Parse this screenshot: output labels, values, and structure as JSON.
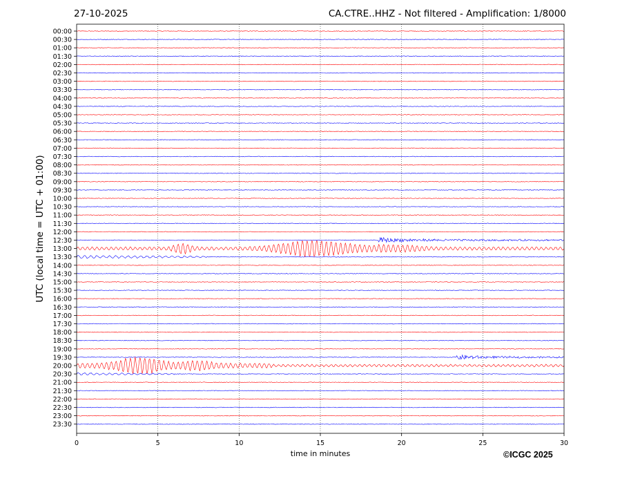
{
  "header": {
    "date": "27-10-2025",
    "title": "CA.CTRE..HHZ - Not filtered - Amplification: 1/8000"
  },
  "footer": {
    "copyright": "©ICGC 2025"
  },
  "colors": {
    "odd_trace": "#ff0000",
    "even_trace": "#0000ff",
    "grid": "#000000"
  },
  "chart_data": {
    "type": "line",
    "title": "CA.CTRE..HHZ - Not filtered - Amplification: 1/8000",
    "xlabel": "time in minutes",
    "ylabel": "UTC (local time = UTC + 01:00)",
    "xlim": [
      0,
      30
    ],
    "xticks": [
      0,
      5,
      10,
      15,
      20,
      25,
      30
    ],
    "grid": "vertical dotted",
    "trace_rows": [
      "00:00",
      "00:30",
      "01:00",
      "01:30",
      "02:00",
      "02:30",
      "03:00",
      "03:30",
      "04:00",
      "04:30",
      "05:00",
      "05:30",
      "06:00",
      "06:30",
      "07:00",
      "07:30",
      "08:00",
      "08:30",
      "09:00",
      "09:30",
      "10:00",
      "10:30",
      "11:00",
      "11:30",
      "12:00",
      "12:30",
      "13:00",
      "13:30",
      "14:00",
      "14:30",
      "15:00",
      "15:30",
      "16:00",
      "16:30",
      "17:00",
      "17:30",
      "18:00",
      "18:30",
      "19:00",
      "19:30",
      "20:00",
      "20:30",
      "21:00",
      "21:30",
      "22:00",
      "22:30",
      "23:00",
      "23:30"
    ],
    "trace_colors": [
      "red",
      "blue"
    ],
    "events": [
      {
        "row": "12:30",
        "start_min": 18.6,
        "end_min": 30,
        "peak_amplitude": 0.35,
        "type": "onset"
      },
      {
        "row": "13:00",
        "start_min": 0,
        "end_min": 30,
        "peak_amplitude": 0.9,
        "type": "surface-waves"
      },
      {
        "row": "13:30",
        "start_min": 0,
        "end_min": 8,
        "peak_amplitude": 0.2,
        "type": "coda"
      },
      {
        "row": "19:30",
        "start_min": 23.4,
        "end_min": 30,
        "peak_amplitude": 0.35,
        "type": "onset"
      },
      {
        "row": "20:00",
        "start_min": 0,
        "end_min": 30,
        "peak_amplitude": 1.0,
        "type": "surface-waves"
      },
      {
        "row": "20:30",
        "start_min": 0,
        "end_min": 6,
        "peak_amplitude": 0.15,
        "type": "coda"
      }
    ]
  }
}
